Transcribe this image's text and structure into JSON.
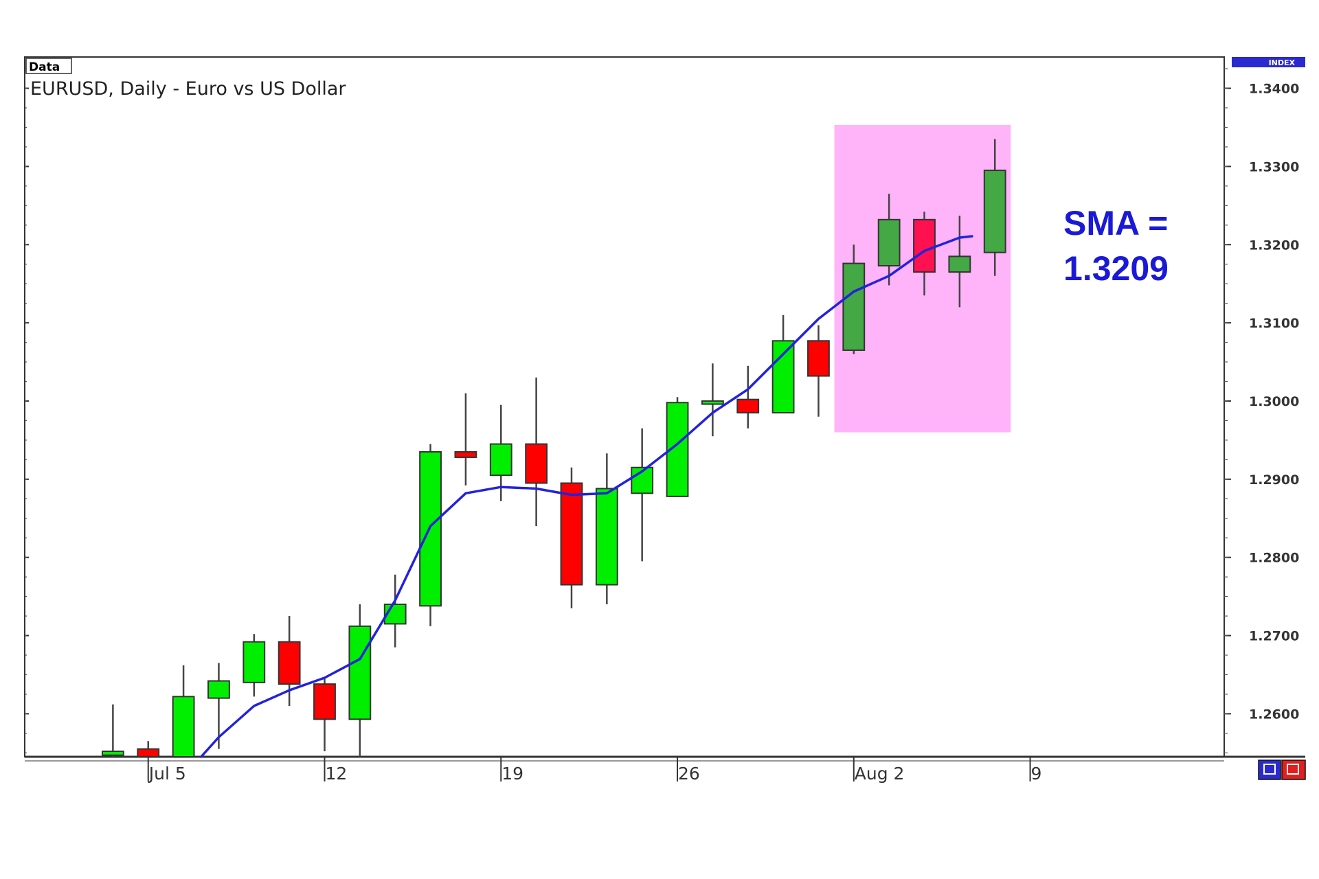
{
  "chart_data": {
    "type": "candlestick",
    "title": "EURUSD, Daily - Euro vs US Dollar",
    "panel_label": "Data",
    "index_label": "INDEX",
    "y_ticks": [
      "1.3400",
      "1.3300",
      "1.3200",
      "1.3100",
      "1.3000",
      "1.2900",
      "1.2800",
      "1.2700",
      "1.2600"
    ],
    "x_ticks": [
      {
        "label": "Jul 5",
        "at": 1
      },
      {
        "label": "12",
        "at": 6
      },
      {
        "label": "19",
        "at": 11
      },
      {
        "label": "26",
        "at": 16
      },
      {
        "label": "Aug 2",
        "at": 21
      },
      {
        "label": "9",
        "at": 26
      }
    ],
    "ylim": [
      1.2545,
      1.344
    ],
    "xlim": [
      -2.5,
      31.5
    ],
    "grid": false,
    "colors": {
      "bull": "#00ee00",
      "bear": "#ff0000",
      "bull_highlight": "#44a844",
      "bear_highlight": "#ff1050",
      "sma_line": "#2222dd",
      "highlight_fill": "#ffb3f9",
      "annotation": "#1a1ad6",
      "badge": "#2a2ad0"
    },
    "candles": [
      {
        "i": 0,
        "open": 1.2547,
        "high": 1.2612,
        "low": 1.2543,
        "close": 1.2552
      },
      {
        "i": 1,
        "open": 1.2555,
        "high": 1.2565,
        "low": 1.2543,
        "close": 1.2545
      },
      {
        "i": 2,
        "open": 1.2545,
        "high": 1.2662,
        "low": 1.2543,
        "close": 1.2622
      },
      {
        "i": 3,
        "open": 1.262,
        "high": 1.2665,
        "low": 1.2555,
        "close": 1.2642
      },
      {
        "i": 4,
        "open": 1.264,
        "high": 1.2702,
        "low": 1.2622,
        "close": 1.2692
      },
      {
        "i": 5,
        "open": 1.2692,
        "high": 1.2725,
        "low": 1.261,
        "close": 1.2638
      },
      {
        "i": 6,
        "open": 1.2638,
        "high": 1.2645,
        "low": 1.2552,
        "close": 1.2593
      },
      {
        "i": 7,
        "open": 1.2593,
        "high": 1.274,
        "low": 1.2545,
        "close": 1.2712
      },
      {
        "i": 8,
        "open": 1.2715,
        "high": 1.2778,
        "low": 1.2685,
        "close": 1.274
      },
      {
        "i": 9,
        "open": 1.2738,
        "high": 1.2945,
        "low": 1.2712,
        "close": 1.2935
      },
      {
        "i": 10,
        "open": 1.2935,
        "high": 1.301,
        "low": 1.2892,
        "close": 1.2928
      },
      {
        "i": 11,
        "open": 1.2905,
        "high": 1.2995,
        "low": 1.2872,
        "close": 1.2945
      },
      {
        "i": 12,
        "open": 1.2945,
        "high": 1.303,
        "low": 1.284,
        "close": 1.2895
      },
      {
        "i": 13,
        "open": 1.2895,
        "high": 1.2915,
        "low": 1.2735,
        "close": 1.2765
      },
      {
        "i": 14,
        "open": 1.2765,
        "high": 1.2933,
        "low": 1.274,
        "close": 1.2888
      },
      {
        "i": 15,
        "open": 1.2882,
        "high": 1.2965,
        "low": 1.2795,
        "close": 1.2915
      },
      {
        "i": 16,
        "open": 1.2878,
        "high": 1.3005,
        "low": 1.2878,
        "close": 1.2998
      },
      {
        "i": 17,
        "open": 1.2996,
        "high": 1.3048,
        "low": 1.2955,
        "close": 1.3
      },
      {
        "i": 18,
        "open": 1.3002,
        "high": 1.3045,
        "low": 1.2965,
        "close": 1.2985
      },
      {
        "i": 19,
        "open": 1.2985,
        "high": 1.311,
        "low": 1.2985,
        "close": 1.3077
      },
      {
        "i": 20,
        "open": 1.3077,
        "high": 1.3097,
        "low": 1.298,
        "close": 1.3032
      },
      {
        "i": 21,
        "open": 1.3065,
        "high": 1.32,
        "low": 1.306,
        "close": 1.3176
      },
      {
        "i": 22,
        "open": 1.3173,
        "high": 1.3265,
        "low": 1.3148,
        "close": 1.3232
      },
      {
        "i": 23,
        "open": 1.3232,
        "high": 1.3242,
        "low": 1.3135,
        "close": 1.3165
      },
      {
        "i": 24,
        "open": 1.3165,
        "high": 1.3237,
        "low": 1.312,
        "close": 1.3185
      },
      {
        "i": 25,
        "open": 1.319,
        "high": 1.3335,
        "low": 1.316,
        "close": 1.3295
      }
    ],
    "sma": {
      "name": "SMA",
      "points": [
        [
          2.5,
          1.2545
        ],
        [
          3,
          1.257
        ],
        [
          4,
          1.261
        ],
        [
          5,
          1.263
        ],
        [
          6,
          1.2646
        ],
        [
          7,
          1.267
        ],
        [
          8,
          1.2745
        ],
        [
          9,
          1.284
        ],
        [
          10,
          1.2882
        ],
        [
          11,
          1.289
        ],
        [
          12,
          1.2888
        ],
        [
          13,
          1.288
        ],
        [
          14,
          1.2882
        ],
        [
          15,
          1.291
        ],
        [
          16,
          1.2945
        ],
        [
          17,
          1.2985
        ],
        [
          18,
          1.3015
        ],
        [
          19,
          1.306
        ],
        [
          20,
          1.3105
        ],
        [
          21,
          1.314
        ],
        [
          22,
          1.316
        ],
        [
          23,
          1.3192
        ],
        [
          24,
          1.3209
        ]
      ]
    },
    "highlight_range": {
      "x": [
        20.45,
        25.45
      ],
      "y": [
        1.296,
        1.3353
      ]
    },
    "annotation": {
      "line1": "SMA =",
      "line2": "1.3209"
    }
  }
}
